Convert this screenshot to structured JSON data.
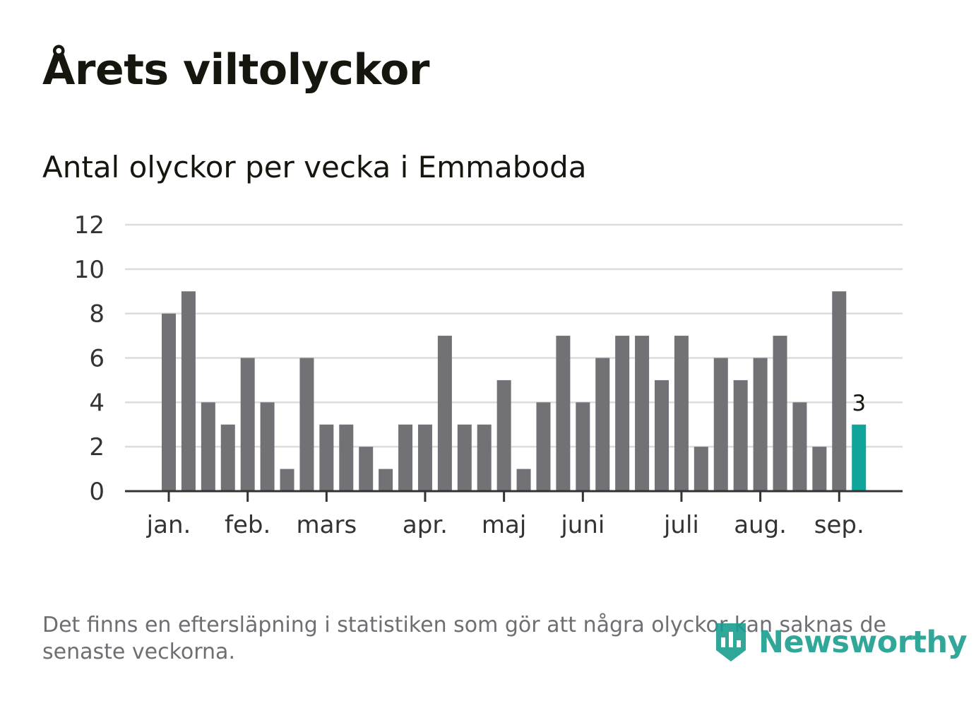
{
  "header": {
    "title": "Årets viltolyckor",
    "subtitle": "Antal olyckor per vecka i Emmaboda"
  },
  "footnote": "Det finns en eftersläpning i statistiken som gör att några olyckor kan saknas de senaste veckorna.",
  "brand": {
    "name": "Newsworthy",
    "icon": "newsworthy-logo-icon",
    "color": "#1a9e8f"
  },
  "colors": {
    "bar": "#717176",
    "highlight": "#0fa59a",
    "grid": "#dcdcdc",
    "axis": "#333333"
  },
  "chart_data": {
    "type": "bar",
    "title": "Antal olyckor per vecka i Emmaboda",
    "xlabel": "",
    "ylabel": "",
    "ylim": [
      0,
      12
    ],
    "yticks": [
      0,
      2,
      4,
      6,
      8,
      10,
      12
    ],
    "grid": true,
    "legend": "none",
    "month_labels": [
      {
        "label": "jan.",
        "week": 0
      },
      {
        "label": "feb.",
        "week": 4
      },
      {
        "label": "mars",
        "week": 8
      },
      {
        "label": "apr.",
        "week": 13
      },
      {
        "label": "maj",
        "week": 17
      },
      {
        "label": "juni",
        "week": 21
      },
      {
        "label": "juli",
        "week": 26
      },
      {
        "label": "aug.",
        "week": 30
      },
      {
        "label": "sep.",
        "week": 34
      }
    ],
    "values": [
      8,
      9,
      4,
      3,
      6,
      4,
      1,
      6,
      3,
      3,
      2,
      1,
      3,
      3,
      7,
      3,
      3,
      5,
      1,
      4,
      7,
      4,
      6,
      7,
      7,
      5,
      7,
      2,
      6,
      5,
      6,
      7,
      4,
      2,
      9,
      3
    ],
    "highlight_index": 35,
    "highlight_label": "3"
  }
}
